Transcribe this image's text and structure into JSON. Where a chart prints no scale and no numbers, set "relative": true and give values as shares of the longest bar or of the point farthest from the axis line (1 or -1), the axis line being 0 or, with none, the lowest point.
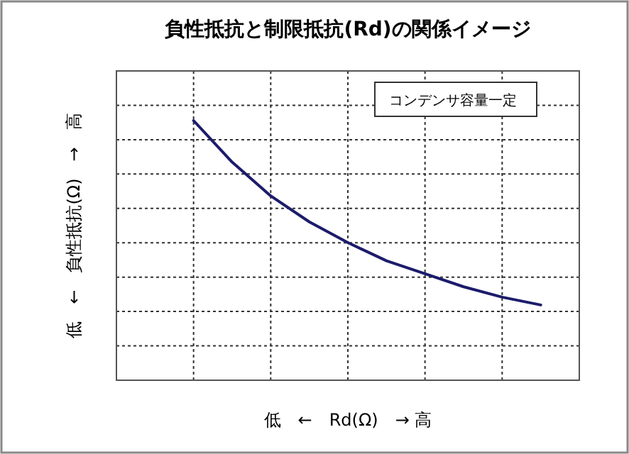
{
  "chart_data": {
    "type": "line",
    "title": "負性抵抗と制限抵抗(Rd)の関係イメージ",
    "xlabel": "低　←　Rd(Ω)　→ 高",
    "ylabel": "低　←　負性抵抗(Ω)　→　高",
    "annotations": [
      "コンデンサ容量一定"
    ],
    "categories": [
      null,
      null,
      null,
      null,
      null,
      null,
      null,
      null,
      null,
      null,
      null,
      null,
      null
    ],
    "series": [
      {
        "color": "#1c1c6b",
        "values": [
          null,
          null,
          1.0,
          0.84,
          0.71,
          0.61,
          0.53,
          0.46,
          0.41,
          0.36,
          0.32,
          0.29,
          null
        ]
      }
    ],
    "relative": true,
    "grid": true,
    "marker": "none",
    "line_style": "solid"
  }
}
